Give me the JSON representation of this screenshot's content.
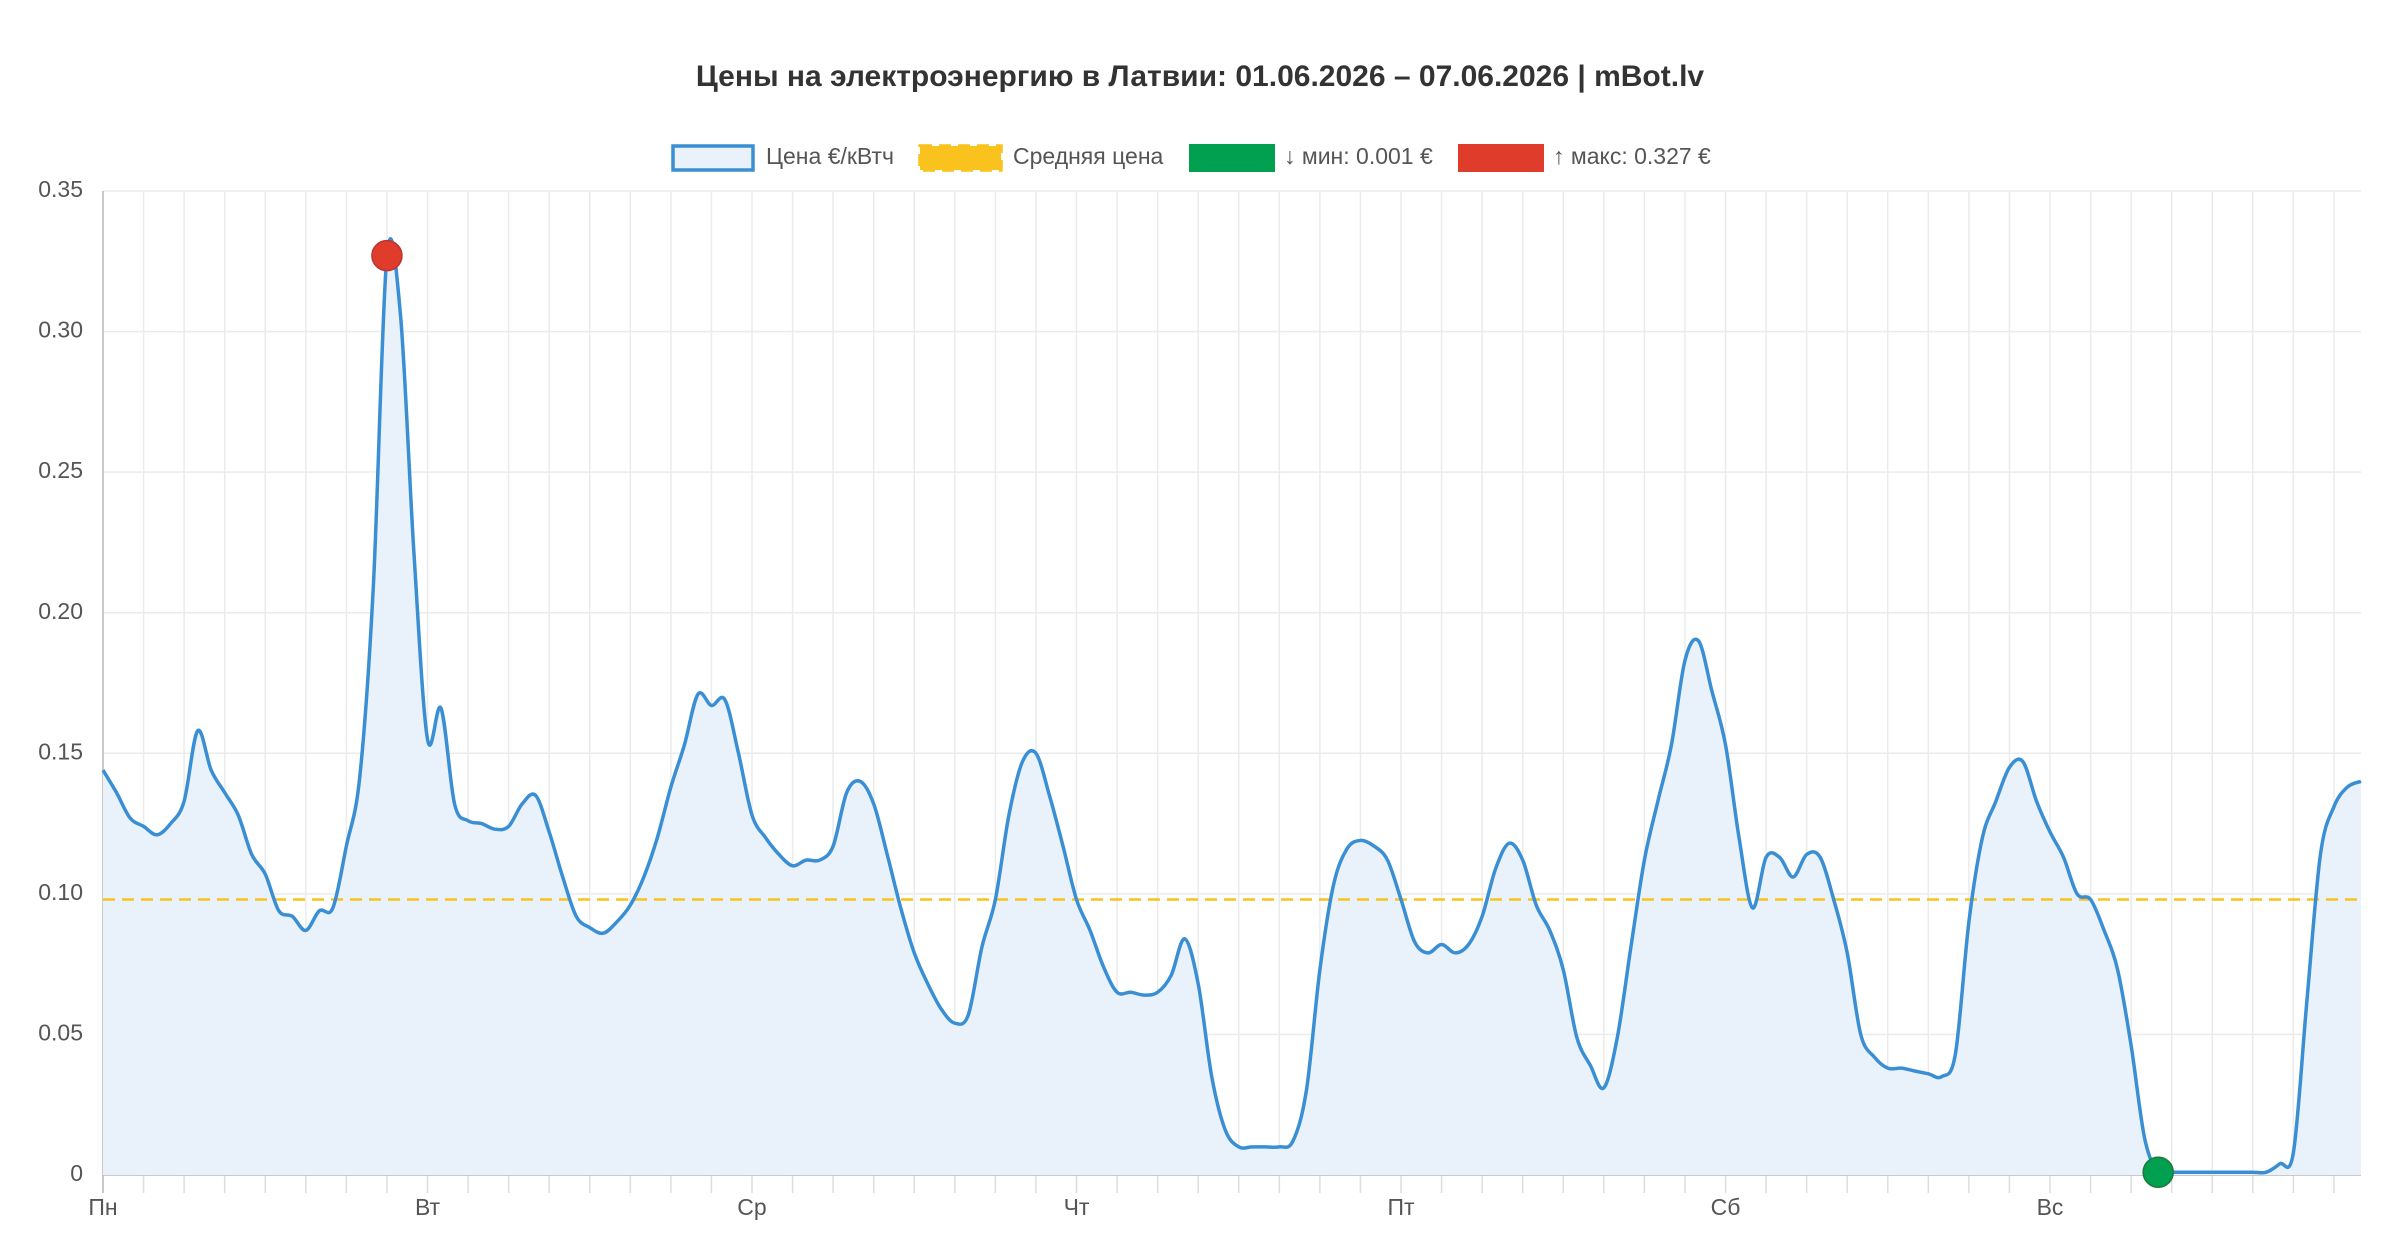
{
  "chart_data": {
    "type": "line",
    "title": "Цены на электроэнергию в Латвии: 01.06.2026 – 07.06.2026 | mBot.lv",
    "categories": [
      "Пн",
      null,
      null,
      null,
      null,
      null,
      null,
      null,
      null,
      null,
      null,
      null,
      null,
      null,
      null,
      null,
      null,
      null,
      null,
      null,
      null,
      null,
      null,
      null,
      "Вт",
      null,
      null,
      null,
      null,
      null,
      null,
      null,
      null,
      null,
      null,
      null,
      null,
      null,
      null,
      null,
      null,
      null,
      null,
      null,
      null,
      null,
      null,
      null,
      "Ср",
      null,
      null,
      null,
      null,
      null,
      null,
      null,
      null,
      null,
      null,
      null,
      null,
      null,
      null,
      null,
      null,
      null,
      null,
      null,
      null,
      null,
      null,
      null,
      "Чт",
      null,
      null,
      null,
      null,
      null,
      null,
      null,
      null,
      null,
      null,
      null,
      null,
      null,
      null,
      null,
      null,
      null,
      null,
      null,
      null,
      null,
      null,
      null,
      "Пт",
      null,
      null,
      null,
      null,
      null,
      null,
      null,
      null,
      null,
      null,
      null,
      null,
      null,
      null,
      null,
      null,
      null,
      null,
      null,
      null,
      null,
      null,
      null,
      "Сб",
      null,
      null,
      null,
      null,
      null,
      null,
      null,
      null,
      null,
      null,
      null,
      null,
      null,
      null,
      null,
      null,
      null,
      null,
      null,
      null,
      null,
      null,
      null,
      "Вс",
      null,
      null,
      null,
      null,
      null,
      null,
      null,
      null,
      null,
      null,
      null,
      null,
      null,
      null,
      null,
      null,
      null,
      null,
      null,
      null,
      null,
      null,
      null
    ],
    "series": [
      {
        "name": "Цена €/кВтч",
        "color": "#3a8fd4",
        "fill": "#e9f2fa",
        "values": [
          0.144,
          0.136,
          0.127,
          0.124,
          0.121,
          0.125,
          0.133,
          0.158,
          0.144,
          0.136,
          0.128,
          0.114,
          0.107,
          0.094,
          0.092,
          0.087,
          0.094,
          0.095,
          0.117,
          0.142,
          0.21,
          0.327,
          0.306,
          0.221,
          0.155,
          0.166,
          0.132,
          0.126,
          0.125,
          0.123,
          0.124,
          0.132,
          0.135,
          0.122,
          0.106,
          0.092,
          0.088,
          0.086,
          0.09,
          0.096,
          0.106,
          0.12,
          0.138,
          0.153,
          0.171,
          0.167,
          0.169,
          0.15,
          0.128,
          0.12,
          0.114,
          0.11,
          0.112,
          0.112,
          0.117,
          0.136,
          0.14,
          0.132,
          0.114,
          0.095,
          0.079,
          0.068,
          0.059,
          0.054,
          0.057,
          0.081,
          0.098,
          0.128,
          0.147,
          0.15,
          0.135,
          0.117,
          0.098,
          0.087,
          0.074,
          0.065,
          0.065,
          0.064,
          0.065,
          0.071,
          0.084,
          0.068,
          0.035,
          0.016,
          0.01,
          0.01,
          0.01,
          0.01,
          0.012,
          0.03,
          0.073,
          0.103,
          0.116,
          0.119,
          0.117,
          0.112,
          0.098,
          0.083,
          0.079,
          0.082,
          0.079,
          0.082,
          0.092,
          0.109,
          0.118,
          0.112,
          0.096,
          0.087,
          0.073,
          0.049,
          0.039,
          0.031,
          0.049,
          0.081,
          0.112,
          0.133,
          0.153,
          0.183,
          0.19,
          0.172,
          0.153,
          0.12,
          0.095,
          0.113,
          0.113,
          0.106,
          0.114,
          0.113,
          0.098,
          0.079,
          0.05,
          0.042,
          0.038,
          0.038,
          0.037,
          0.036,
          0.035,
          0.043,
          0.09,
          0.12,
          0.133,
          0.145,
          0.147,
          0.133,
          0.122,
          0.113,
          0.1,
          0.098,
          0.087,
          0.073,
          0.046,
          0.013,
          0.001,
          0.001,
          0.001,
          0.001,
          0.001,
          0.001,
          0.001,
          0.001,
          0.001,
          0.004,
          0.008,
          0.062,
          0.114,
          0.131,
          0.138,
          0.14
        ]
      }
    ],
    "average": {
      "name": "Средняя цена",
      "value": 0.098,
      "color": "#f9c21c"
    },
    "min": {
      "name": "↓ мин: 0.001 €",
      "color": "#00a050"
    },
    "max": {
      "name": "↑ макс: 0.327 €",
      "color": "#e03c2c"
    },
    "ylim": [
      0,
      0.35
    ],
    "yticks": [
      0,
      {
        "value": 0.05,
        "label": "0.05"
      },
      {
        "value": 0.1,
        "label": "0.10"
      },
      {
        "value": 0.15,
        "label": "0.15"
      },
      {
        "value": 0.2,
        "label": "0.20"
      },
      {
        "value": 0.25,
        "label": "0.25"
      },
      {
        "value": 0.3,
        "label": "0.30"
      },
      {
        "value": 0.35,
        "label": "0.35"
      }
    ],
    "grid": true
  }
}
